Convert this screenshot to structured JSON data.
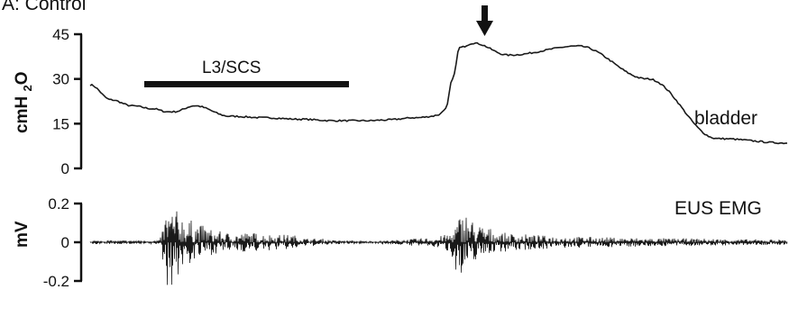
{
  "panel_label": "A: Control",
  "stim_label": "L3/SCS",
  "colors": {
    "trace": "#1a1a1a",
    "axis": "#111111",
    "background": "#ffffff"
  },
  "chart_data": [
    {
      "type": "line",
      "name": "bladder",
      "ylabel": "cmH2O",
      "ylim": [
        0,
        45
      ],
      "yticks": [
        0,
        15,
        30,
        45
      ],
      "trace_label": "bladder",
      "x": [
        0,
        0.06,
        0.12,
        0.18,
        0.22,
        0.24,
        0.3,
        0.4,
        0.5,
        0.6,
        0.7,
        0.8,
        0.84,
        0.86,
        0.88,
        0.9,
        0.92,
        0.94,
        0.96,
        0.98,
        1.0,
        1.02,
        1.04,
        1.06,
        1.1,
        1.2,
        1.4,
        1.6,
        1.8,
        2.0
      ],
      "y": [
        28,
        23,
        21,
        20,
        19,
        19,
        21,
        17.5,
        17,
        16.5,
        16,
        16,
        16.2,
        16.3,
        16.5,
        16.7,
        17,
        17,
        17.2,
        17.5,
        18,
        20,
        30,
        40.5,
        42,
        38,
        41,
        30,
        10,
        8.5
      ],
      "events": [
        {
          "name": "stimulation",
          "label": "L3/SCS",
          "x_start": 0.22,
          "x_end": 0.92
        },
        {
          "name": "void-arrow",
          "x": 1.08
        }
      ]
    },
    {
      "type": "line",
      "name": "EUS EMG",
      "ylabel": "mV",
      "ylim": [
        -0.2,
        0.2
      ],
      "yticks": [
        -0.2,
        0,
        0.2
      ],
      "trace_label": "EUS EMG",
      "amplitude_envelope": {
        "x": [
          0,
          0.1,
          0.2,
          0.22,
          0.24,
          0.26,
          0.28,
          0.3,
          0.32,
          0.36,
          0.4,
          0.44,
          0.48,
          0.5,
          0.54,
          0.58,
          0.62,
          0.66,
          0.7,
          0.74,
          0.78,
          0.82,
          0.86,
          0.9,
          0.94,
          0.98,
          1.0,
          1.02,
          1.04,
          1.06,
          1.08,
          1.1,
          1.12,
          1.14,
          1.18,
          1.22,
          1.3,
          1.4,
          1.5,
          1.6,
          1.7,
          1.8,
          1.9,
          2.0
        ],
        "upper": [
          0.01,
          0.01,
          0.01,
          0.18,
          0.17,
          0.16,
          0.12,
          0.11,
          0.09,
          0.06,
          0.05,
          0.05,
          0.05,
          0.045,
          0.04,
          0.04,
          0.02,
          0.02,
          0.01,
          0.01,
          0.005,
          0.005,
          0.01,
          0.015,
          0.02,
          0.025,
          0.03,
          0.04,
          0.06,
          0.14,
          0.16,
          0.11,
          0.09,
          0.08,
          0.05,
          0.045,
          0.035,
          0.03,
          0.025,
          0.022,
          0.02,
          0.018,
          0.015,
          0.015
        ],
        "lower": [
          -0.01,
          -0.01,
          -0.01,
          -0.24,
          -0.22,
          -0.16,
          -0.12,
          -0.11,
          -0.08,
          -0.06,
          -0.05,
          -0.05,
          -0.05,
          -0.045,
          -0.04,
          -0.04,
          -0.02,
          -0.02,
          -0.01,
          -0.01,
          -0.005,
          -0.005,
          -0.01,
          -0.015,
          -0.02,
          -0.025,
          -0.03,
          -0.04,
          -0.08,
          -0.22,
          -0.2,
          -0.1,
          -0.08,
          -0.06,
          -0.05,
          -0.045,
          -0.035,
          -0.03,
          -0.025,
          -0.022,
          -0.02,
          -0.018,
          -0.015,
          -0.015
        ]
      }
    }
  ]
}
